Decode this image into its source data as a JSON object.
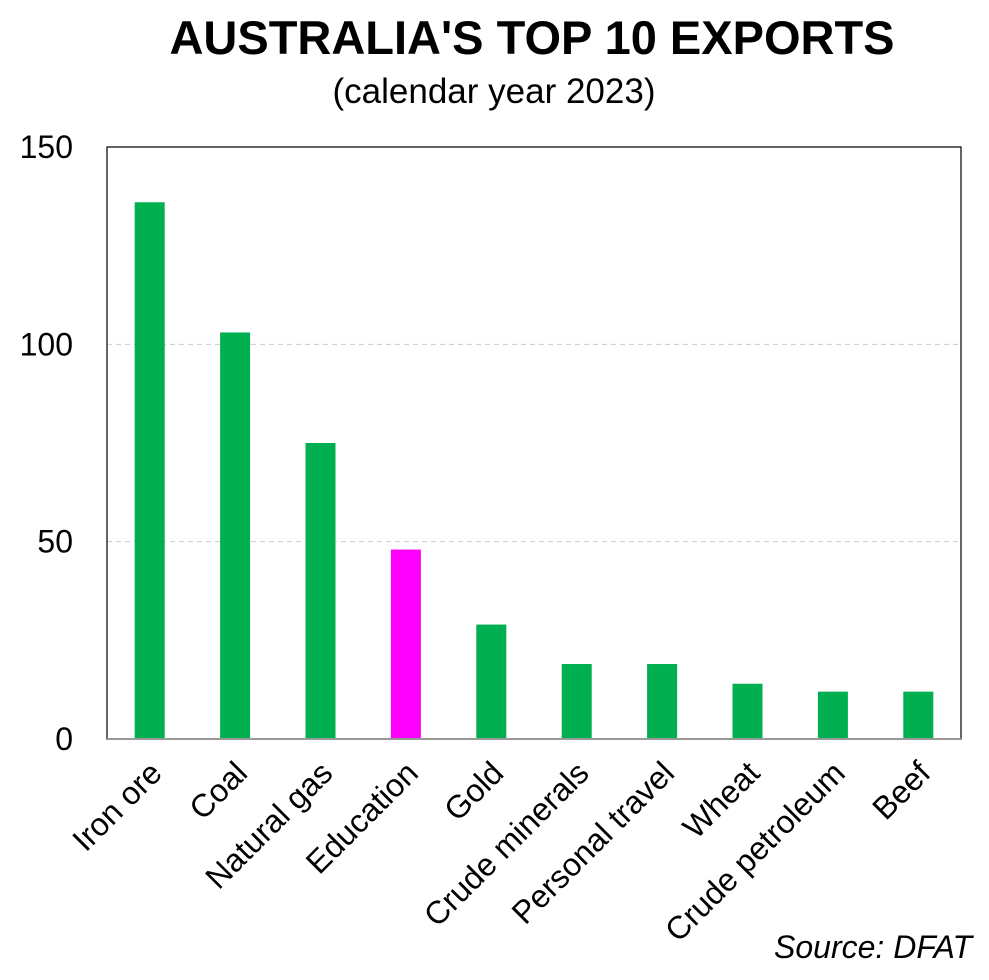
{
  "chart_data": {
    "type": "bar",
    "title": "AUSTRALIA'S TOP 10 EXPORTS",
    "subtitle": "(calendar year 2023)",
    "xlabel": "",
    "ylabel": "",
    "categories": [
      "Iron ore",
      "Coal",
      "Natural gas",
      "Education",
      "Gold",
      "Crude minerals",
      "Personal travel",
      "Wheat",
      "Crude petroleum",
      "Beef"
    ],
    "values": [
      136,
      103,
      75,
      48,
      29,
      19,
      19,
      14,
      12,
      12
    ],
    "ylim": [
      0,
      150
    ],
    "yticks": [
      0,
      50,
      100,
      150
    ],
    "grid": true,
    "colors": {
      "default": "#00b050",
      "highlight": "#ff00ff"
    },
    "highlight_category": "Education",
    "source": "Source: DFAT"
  }
}
